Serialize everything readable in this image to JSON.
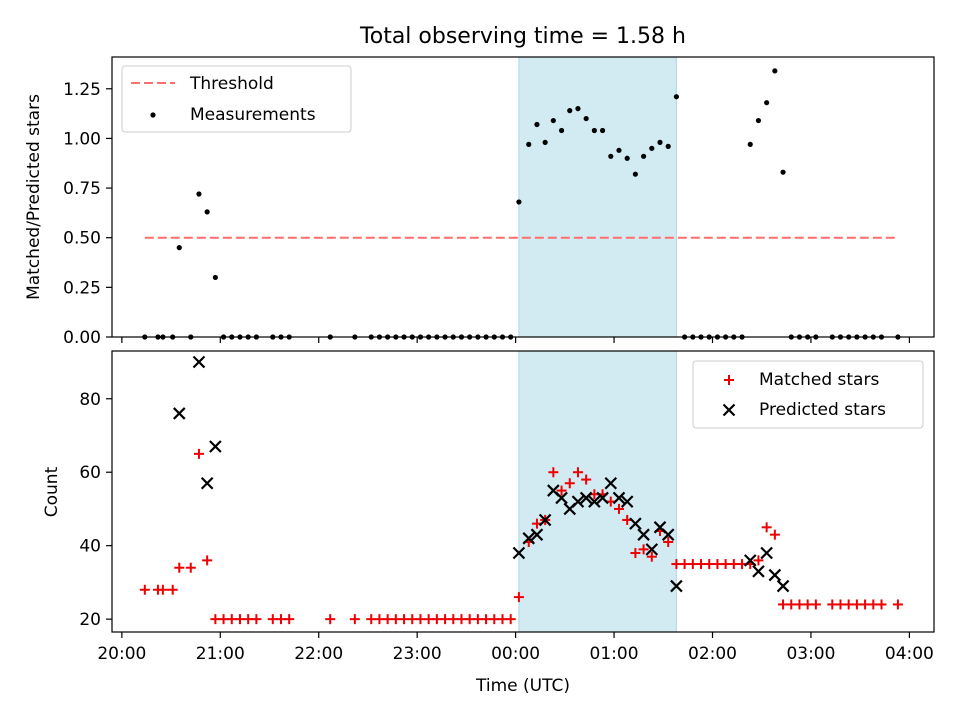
{
  "title": "Total observing time = 1.58 h",
  "colors": {
    "threshold": "#ff6e6e",
    "measurement": "#000000",
    "matched": "#ee0000",
    "predicted": "#000000",
    "span": "#add8e6"
  },
  "chart_data": [
    {
      "type": "scatter",
      "ylabel": "Matched/Predicted stars",
      "xlim": [
        "20:00",
        "04:00"
      ],
      "ylim": [
        0.0,
        1.41
      ],
      "yticks": [
        "0.00",
        "0.25",
        "0.50",
        "0.75",
        "1.00",
        "1.25"
      ],
      "highlight_span": [
        "00:02",
        "01:38"
      ],
      "legend_position": "upper-left",
      "threshold": {
        "name": "Threshold",
        "value": 0.5,
        "x_range": [
          "20:14",
          "03:53"
        ]
      },
      "series": [
        {
          "name": "Measurements",
          "points": [
            [
              "20:14",
              0
            ],
            [
              "20:22",
              0
            ],
            [
              "20:25",
              0
            ],
            [
              "20:31",
              0
            ],
            [
              "20:35",
              0.45
            ],
            [
              "20:42",
              0
            ],
            [
              "20:47",
              0.72
            ],
            [
              "20:52",
              0.63
            ],
            [
              "20:57",
              0.3
            ],
            [
              "21:02",
              0
            ],
            [
              "21:07",
              0
            ],
            [
              "21:12",
              0
            ],
            [
              "21:17",
              0
            ],
            [
              "21:22",
              0
            ],
            [
              "21:32",
              0
            ],
            [
              "21:37",
              0
            ],
            [
              "21:42",
              0
            ],
            [
              "22:07",
              0
            ],
            [
              "22:22",
              0
            ],
            [
              "22:32",
              0
            ],
            [
              "22:37",
              0
            ],
            [
              "22:42",
              0
            ],
            [
              "22:47",
              0
            ],
            [
              "22:52",
              0
            ],
            [
              "22:57",
              0
            ],
            [
              "23:02",
              0
            ],
            [
              "23:07",
              0
            ],
            [
              "23:12",
              0
            ],
            [
              "23:17",
              0
            ],
            [
              "23:22",
              0
            ],
            [
              "23:27",
              0
            ],
            [
              "23:32",
              0
            ],
            [
              "23:37",
              0
            ],
            [
              "23:42",
              0
            ],
            [
              "23:47",
              0
            ],
            [
              "23:52",
              0
            ],
            [
              "23:57",
              0
            ],
            [
              "00:02",
              0.68
            ],
            [
              "00:08",
              0.97
            ],
            [
              "00:13",
              1.07
            ],
            [
              "00:18",
              0.98
            ],
            [
              "00:23",
              1.09
            ],
            [
              "00:28",
              1.04
            ],
            [
              "00:33",
              1.14
            ],
            [
              "00:38",
              1.15
            ],
            [
              "00:43",
              1.1
            ],
            [
              "00:48",
              1.04
            ],
            [
              "00:53",
              1.04
            ],
            [
              "00:58",
              0.91
            ],
            [
              "01:03",
              0.94
            ],
            [
              "01:08",
              0.9
            ],
            [
              "01:13",
              0.82
            ],
            [
              "01:18",
              0.91
            ],
            [
              "01:23",
              0.95
            ],
            [
              "01:28",
              0.98
            ],
            [
              "01:33",
              0.96
            ],
            [
              "01:38",
              1.21
            ],
            [
              "01:43",
              0
            ],
            [
              "01:48",
              0
            ],
            [
              "01:53",
              0
            ],
            [
              "01:58",
              0
            ],
            [
              "02:03",
              0
            ],
            [
              "02:08",
              0
            ],
            [
              "02:13",
              0
            ],
            [
              "02:18",
              0
            ],
            [
              "02:23",
              0.97
            ],
            [
              "02:28",
              1.09
            ],
            [
              "02:33",
              1.18
            ],
            [
              "02:38",
              1.34
            ],
            [
              "02:43",
              0.83
            ],
            [
              "02:48",
              0
            ],
            [
              "02:53",
              0
            ],
            [
              "02:58",
              0
            ],
            [
              "03:03",
              0
            ],
            [
              "03:13",
              0
            ],
            [
              "03:18",
              0
            ],
            [
              "03:23",
              0
            ],
            [
              "03:28",
              0
            ],
            [
              "03:33",
              0
            ],
            [
              "03:38",
              0
            ],
            [
              "03:43",
              0
            ],
            [
              "03:53",
              0
            ]
          ]
        }
      ]
    },
    {
      "type": "scatter",
      "xlabel": "Time (UTC)",
      "ylabel": "Count",
      "xlim": [
        "20:00",
        "04:00"
      ],
      "ylim": [
        16.5,
        93
      ],
      "yticks": [
        "20",
        "40",
        "60",
        "80"
      ],
      "xticks": [
        "20:00",
        "21:00",
        "22:00",
        "23:00",
        "00:00",
        "01:00",
        "02:00",
        "03:00",
        "04:00"
      ],
      "highlight_span": [
        "00:02",
        "01:38"
      ],
      "legend_position": "upper-right",
      "series": [
        {
          "name": "Matched stars",
          "marker": "plus",
          "points": [
            [
              "20:14",
              28
            ],
            [
              "20:22",
              28
            ],
            [
              "20:25",
              28
            ],
            [
              "20:31",
              28
            ],
            [
              "20:35",
              34
            ],
            [
              "20:42",
              34
            ],
            [
              "20:47",
              65
            ],
            [
              "20:52",
              36
            ],
            [
              "20:57",
              20
            ],
            [
              "21:02",
              20
            ],
            [
              "21:07",
              20
            ],
            [
              "21:12",
              20
            ],
            [
              "21:17",
              20
            ],
            [
              "21:22",
              20
            ],
            [
              "21:32",
              20
            ],
            [
              "21:37",
              20
            ],
            [
              "21:42",
              20
            ],
            [
              "22:07",
              20
            ],
            [
              "22:22",
              20
            ],
            [
              "22:32",
              20
            ],
            [
              "22:37",
              20
            ],
            [
              "22:42",
              20
            ],
            [
              "22:47",
              20
            ],
            [
              "22:52",
              20
            ],
            [
              "22:57",
              20
            ],
            [
              "23:02",
              20
            ],
            [
              "23:07",
              20
            ],
            [
              "23:12",
              20
            ],
            [
              "23:17",
              20
            ],
            [
              "23:22",
              20
            ],
            [
              "23:27",
              20
            ],
            [
              "23:32",
              20
            ],
            [
              "23:37",
              20
            ],
            [
              "23:42",
              20
            ],
            [
              "23:47",
              20
            ],
            [
              "23:52",
              20
            ],
            [
              "23:57",
              20
            ],
            [
              "00:02",
              26
            ],
            [
              "00:08",
              41
            ],
            [
              "00:13",
              46
            ],
            [
              "00:18",
              47
            ],
            [
              "00:23",
              60
            ],
            [
              "00:28",
              55
            ],
            [
              "00:33",
              57
            ],
            [
              "00:38",
              60
            ],
            [
              "00:43",
              58
            ],
            [
              "00:48",
              54
            ],
            [
              "00:53",
              54
            ],
            [
              "00:58",
              52
            ],
            [
              "01:03",
              50
            ],
            [
              "01:08",
              47
            ],
            [
              "01:13",
              38
            ],
            [
              "01:18",
              39
            ],
            [
              "01:23",
              37
            ],
            [
              "01:28",
              44
            ],
            [
              "01:33",
              41
            ],
            [
              "01:38",
              35
            ],
            [
              "01:43",
              35
            ],
            [
              "01:48",
              35
            ],
            [
              "01:53",
              35
            ],
            [
              "01:58",
              35
            ],
            [
              "02:03",
              35
            ],
            [
              "02:08",
              35
            ],
            [
              "02:13",
              35
            ],
            [
              "02:18",
              35
            ],
            [
              "02:23",
              35
            ],
            [
              "02:28",
              36
            ],
            [
              "02:33",
              45
            ],
            [
              "02:38",
              43
            ],
            [
              "02:43",
              24
            ],
            [
              "02:48",
              24
            ],
            [
              "02:53",
              24
            ],
            [
              "02:58",
              24
            ],
            [
              "03:03",
              24
            ],
            [
              "03:13",
              24
            ],
            [
              "03:18",
              24
            ],
            [
              "03:23",
              24
            ],
            [
              "03:28",
              24
            ],
            [
              "03:33",
              24
            ],
            [
              "03:38",
              24
            ],
            [
              "03:43",
              24
            ],
            [
              "03:53",
              24
            ]
          ]
        },
        {
          "name": "Predicted stars",
          "marker": "x",
          "points": [
            [
              "20:35",
              76
            ],
            [
              "20:47",
              90
            ],
            [
              "20:52",
              57
            ],
            [
              "20:57",
              67
            ],
            [
              "00:02",
              38
            ],
            [
              "00:08",
              42
            ],
            [
              "00:13",
              43
            ],
            [
              "00:18",
              47
            ],
            [
              "00:23",
              55
            ],
            [
              "00:28",
              53
            ],
            [
              "00:33",
              50
            ],
            [
              "00:38",
              52
            ],
            [
              "00:43",
              53
            ],
            [
              "00:48",
              52
            ],
            [
              "00:53",
              53
            ],
            [
              "00:58",
              57
            ],
            [
              "01:03",
              53
            ],
            [
              "01:08",
              52
            ],
            [
              "01:13",
              46
            ],
            [
              "01:18",
              43
            ],
            [
              "01:23",
              39
            ],
            [
              "01:28",
              45
            ],
            [
              "01:33",
              43
            ],
            [
              "01:38",
              29
            ],
            [
              "02:23",
              36
            ],
            [
              "02:28",
              33
            ],
            [
              "02:33",
              38
            ],
            [
              "02:38",
              32
            ],
            [
              "02:43",
              29
            ]
          ]
        }
      ]
    }
  ]
}
